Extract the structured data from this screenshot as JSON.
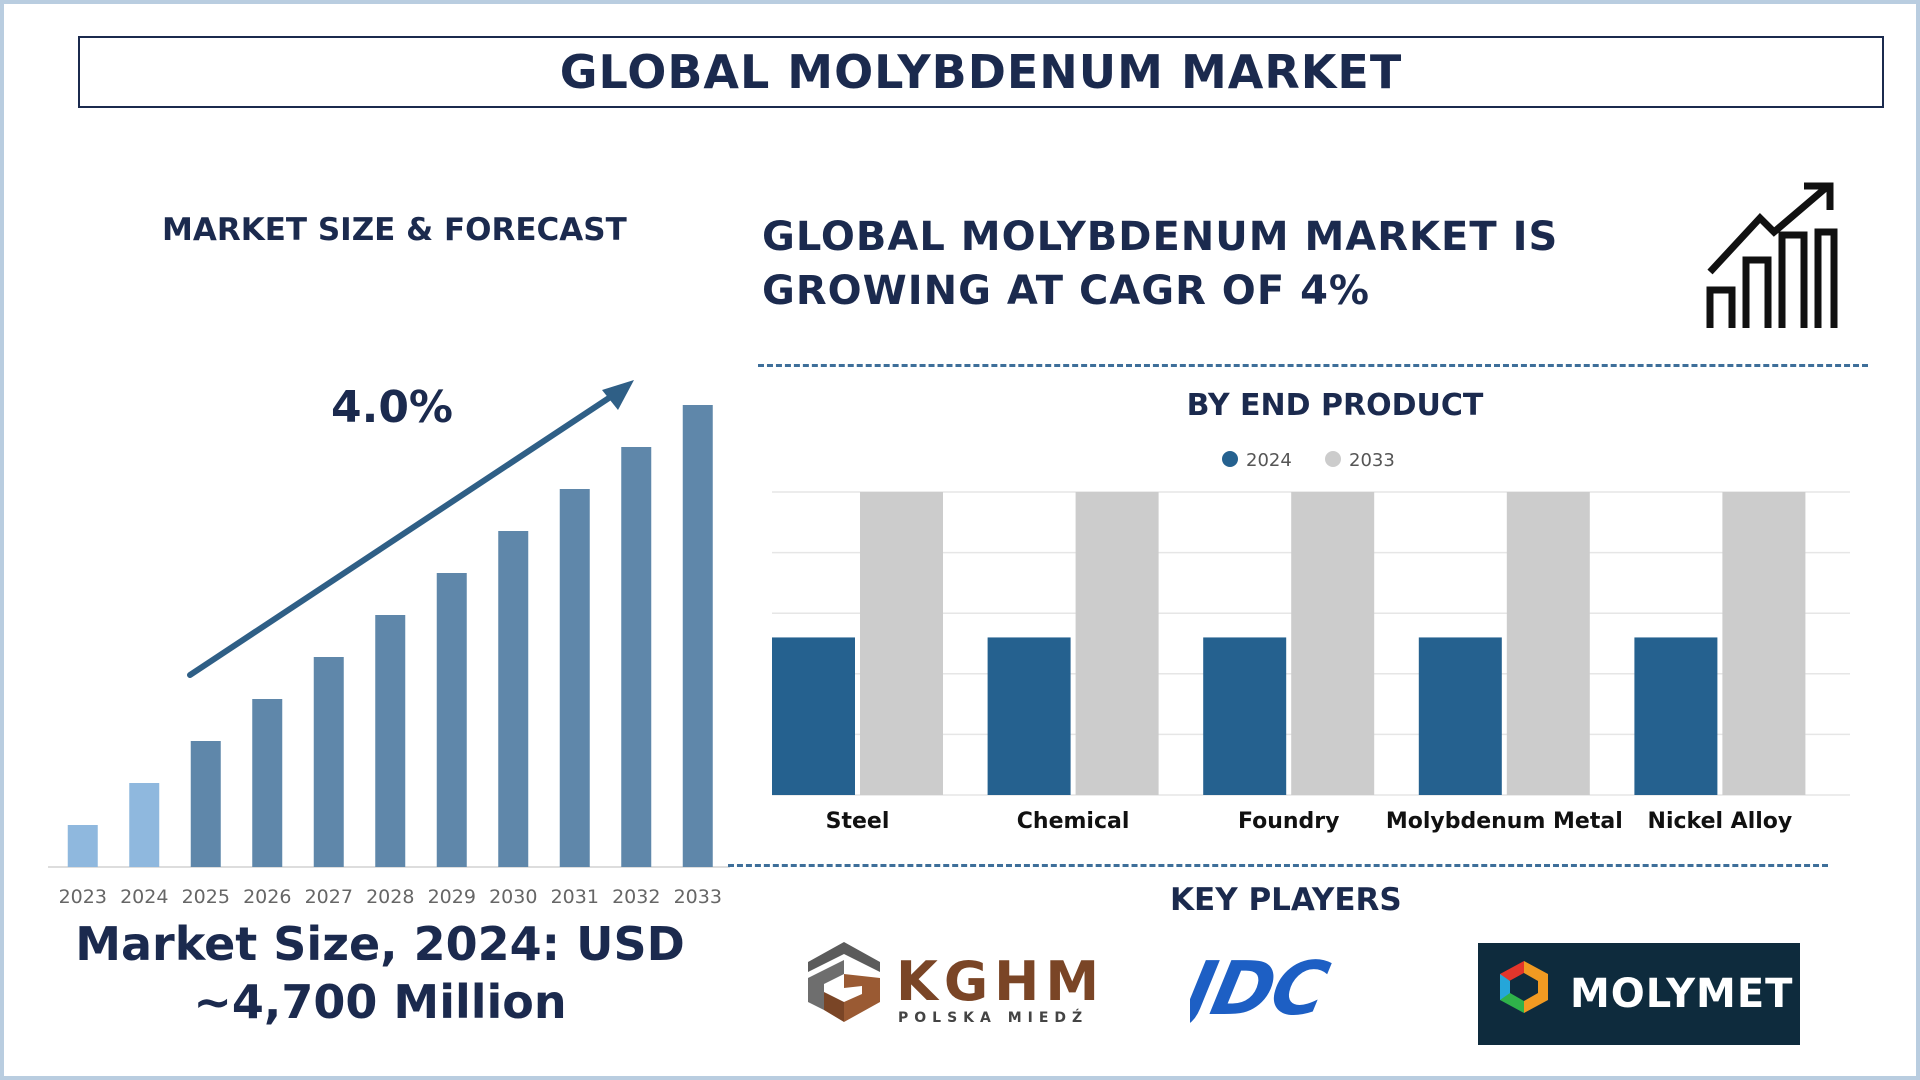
{
  "title": "GLOBAL MOLYBDENUM MARKET",
  "left_section": {
    "heading": "MARKET SIZE & FORECAST",
    "cagr_label": "4.0%",
    "market_size_line1": "Market Size, 2024: USD",
    "market_size_line2": "~4,700 Million"
  },
  "headline": {
    "line1": "GLOBAL MOLYBDENUM MARKET IS",
    "line2": "GROWING AT CAGR OF 4%"
  },
  "icons": {
    "growth": "growth-chart-icon"
  },
  "chart_data": [
    {
      "type": "bar",
      "title": "",
      "categories": [
        "2023",
        "2024",
        "2025",
        "2026",
        "2027",
        "2028",
        "2029",
        "2030",
        "2031",
        "2032",
        "2033"
      ],
      "values": [
        1.0,
        2.0,
        3.0,
        4.0,
        5.0,
        6.0,
        7.0,
        8.0,
        9.0,
        10.0,
        11.0
      ],
      "highlighted": [
        "2023",
        "2024"
      ],
      "colors": {
        "history": "#8fb8de",
        "forecast": "#5f87aa"
      },
      "annotation": "4.0%",
      "ylim": [
        0,
        11
      ],
      "grid": false
    },
    {
      "type": "bar",
      "title": "BY END PRODUCT",
      "categories": [
        "Steel",
        "Chemical",
        "Foundry",
        "Molybdenum Metal",
        "Nickel Alloy"
      ],
      "series": [
        {
          "name": "2024",
          "values": [
            52,
            52,
            52,
            52,
            52
          ],
          "color": "#25618f"
        },
        {
          "name": "2033",
          "values": [
            100,
            100,
            100,
            100,
            100
          ],
          "color": "#cccccc"
        }
      ],
      "ylim": [
        0,
        100
      ],
      "grid": true,
      "legend": "top-center"
    }
  ],
  "key_players": {
    "heading": "KEY PLAYERS",
    "kghm": {
      "name": "KGHM",
      "sub": "POLSKA MIEDŹ"
    },
    "jdc": {
      "name": "JDC"
    },
    "molymet": {
      "name": "MOLYMET"
    }
  }
}
